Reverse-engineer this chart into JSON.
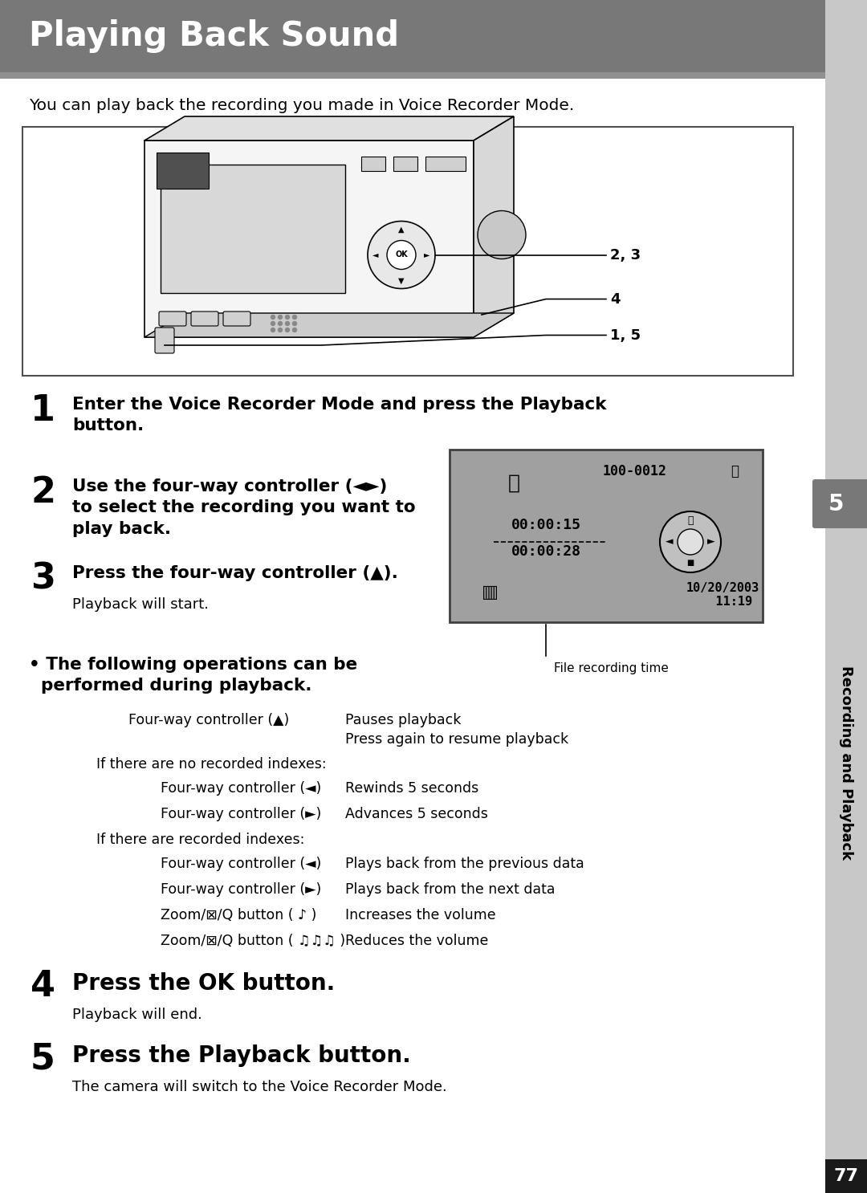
{
  "title": "Playing Back Sound",
  "title_bg_color": "#787878",
  "title_text_color": "#ffffff",
  "page_bg_color": "#ffffff",
  "intro_text": "You can play back the recording you made in Voice Recorder Mode.",
  "sidebar_text": "Recording and Playback",
  "sidebar_num": "5",
  "page_num": "77",
  "right_sidebar_color": "#c8c8c8",
  "right_tab_color": "#787878",
  "cam_box_color": "#404040",
  "screen_bg_color": "#a0a0a0",
  "ops": [
    {
      "type": "row",
      "ctrl": "Four-way controller (▲)",
      "action": "Pauses playback\nPress again to resume playback",
      "indent": 1
    },
    {
      "type": "label",
      "text": "If there are no recorded indexes:",
      "indent": 0
    },
    {
      "type": "row",
      "ctrl": "Four-way controller (◄)",
      "action": "Rewinds 5 seconds",
      "indent": 2
    },
    {
      "type": "row",
      "ctrl": "Four-way controller (►)",
      "action": "Advances 5 seconds",
      "indent": 2
    },
    {
      "type": "label",
      "text": "If there are recorded indexes:",
      "indent": 0
    },
    {
      "type": "row",
      "ctrl": "Four-way controller (◄)",
      "action": "Plays back from the previous data",
      "indent": 2
    },
    {
      "type": "row",
      "ctrl": "Four-way controller (►)",
      "action": "Plays back from the next data",
      "indent": 2
    },
    {
      "type": "row",
      "ctrl": "Zoom/⊠/Q button ( ♪ )",
      "action": "Increases the volume",
      "indent": 2
    },
    {
      "type": "row",
      "ctrl": "Zoom/⊠/Q button ( ♫♫♫ )",
      "action": "Reduces the volume",
      "indent": 2
    }
  ]
}
